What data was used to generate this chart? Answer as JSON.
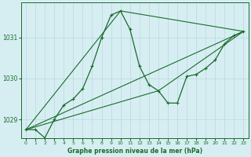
{
  "title": "Graphe pression niveau de la mer (hPa)",
  "bg_color": "#d6eef2",
  "grid_color": "#b8d8de",
  "line_color": "#1a6b2a",
  "xlim": [
    -0.5,
    23.5
  ],
  "ylim": [
    1028.55,
    1031.85
  ],
  "yticks": [
    1029,
    1030,
    1031
  ],
  "xticks": [
    0,
    1,
    2,
    3,
    4,
    5,
    6,
    7,
    8,
    9,
    10,
    11,
    12,
    13,
    14,
    15,
    16,
    17,
    18,
    19,
    20,
    21,
    22,
    23
  ],
  "main_series_x": [
    0,
    1,
    2,
    3,
    4,
    5,
    6,
    7,
    8,
    9,
    10,
    11,
    12,
    13,
    14,
    15,
    16,
    17,
    18,
    19,
    20,
    21,
    22,
    23
  ],
  "main_series_y": [
    1028.75,
    1028.75,
    1028.55,
    1029.0,
    1029.35,
    1029.5,
    1029.75,
    1030.3,
    1031.0,
    1031.55,
    1031.65,
    1031.2,
    1030.3,
    1029.85,
    1029.7,
    1029.4,
    1029.4,
    1030.05,
    1030.1,
    1030.25,
    1030.45,
    1030.85,
    1031.05,
    1031.15
  ],
  "straight_lines": [
    {
      "x": [
        0,
        23
      ],
      "y": [
        1028.75,
        1031.15
      ]
    },
    {
      "x": [
        0,
        10,
        23
      ],
      "y": [
        1028.75,
        1031.65,
        1031.15
      ]
    },
    {
      "x": [
        0,
        14,
        23
      ],
      "y": [
        1028.75,
        1029.7,
        1031.15
      ]
    }
  ]
}
